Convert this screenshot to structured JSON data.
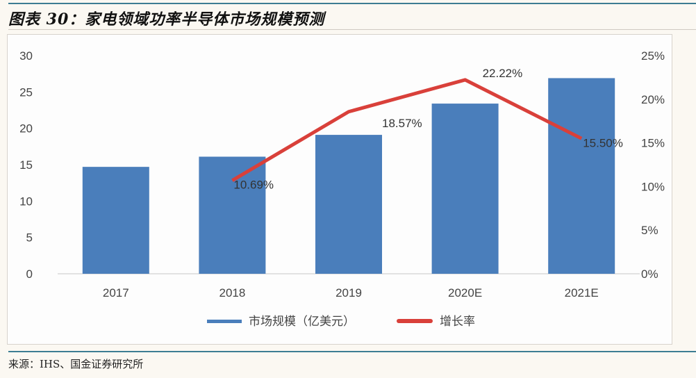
{
  "header": {
    "title": "图表 30：家电领域功率半导体市场规模预测"
  },
  "footer": {
    "source": "来源：IHS、国金证券研究所"
  },
  "colors": {
    "bar": "#4a7ebb",
    "line": "#d9403a",
    "accent_rule": "#3d7d93",
    "background": "#fbf8f2"
  },
  "legend": {
    "bar_label": "市场规模（亿美元）",
    "line_label": "增长率"
  },
  "chart_data": {
    "type": "bar",
    "title": "家电领域功率半导体市场规模预测",
    "categories": [
      "2017",
      "2018",
      "2019",
      "2020E",
      "2021E"
    ],
    "series": [
      {
        "name": "市场规模（亿美元）",
        "type": "bar",
        "axis": "left",
        "values": [
          14.7,
          16.1,
          19.1,
          23.4,
          26.9
        ]
      },
      {
        "name": "增长率",
        "type": "line",
        "axis": "right",
        "values": [
          null,
          10.69,
          18.57,
          22.22,
          15.5
        ],
        "labels": [
          "",
          "10.69%",
          "18.57%",
          "22.22%",
          "15.50%"
        ]
      }
    ],
    "xlabel": "",
    "ylabel": "",
    "ylim": [
      0,
      30
    ],
    "y_ticks": [
      "0",
      "5",
      "10",
      "15",
      "20",
      "25",
      "30"
    ],
    "y2lim": [
      0,
      25
    ],
    "y2_ticks": [
      "0%",
      "5%",
      "10%",
      "15%",
      "20%",
      "25%"
    ],
    "grid": false,
    "legend_position": "bottom"
  }
}
